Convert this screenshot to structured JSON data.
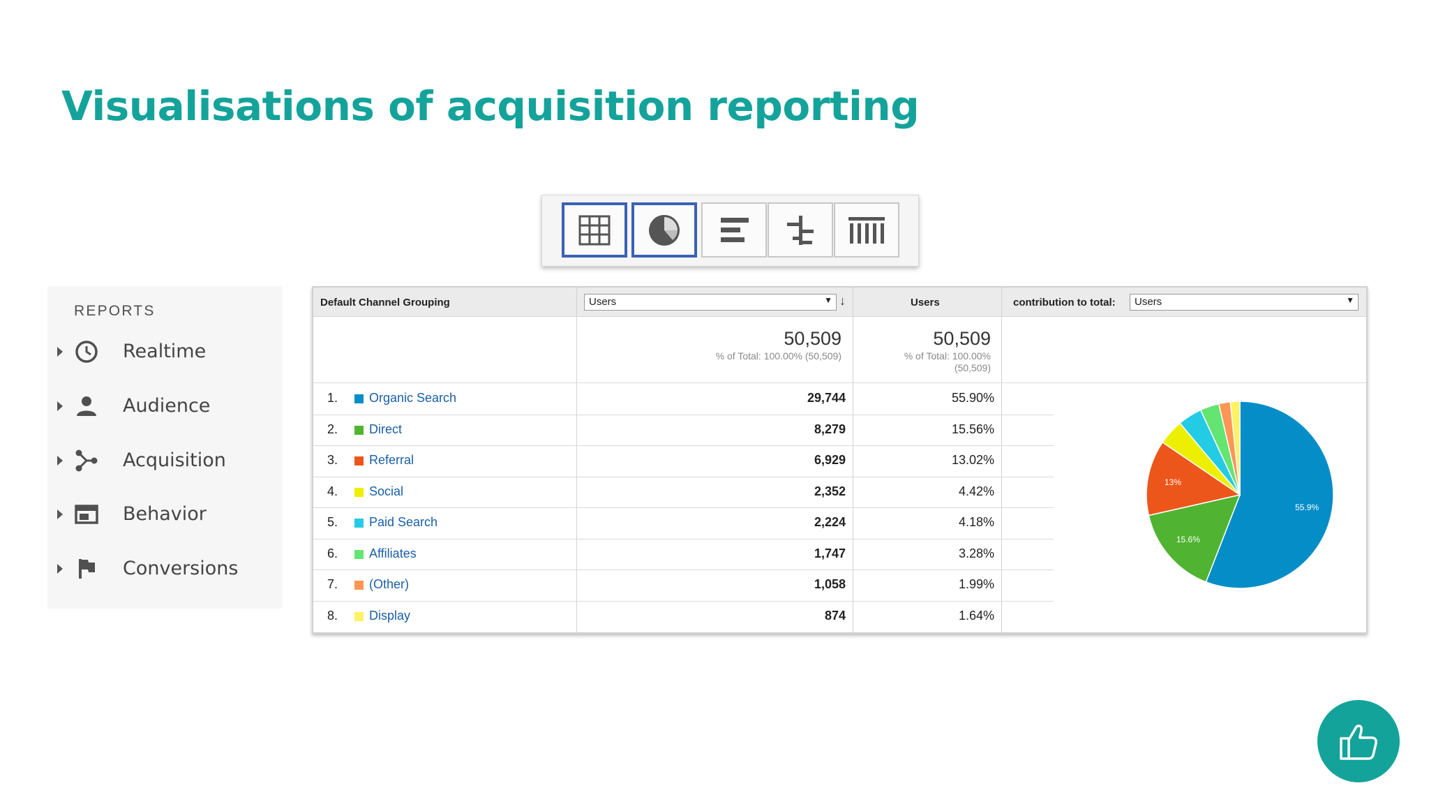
{
  "slide": {
    "title": "Visualisations of acquisition reporting"
  },
  "toolbar": {
    "buttons": [
      {
        "icon": "grid-table-icon",
        "active": true
      },
      {
        "icon": "pie-chart-icon",
        "active": true
      },
      {
        "icon": "bar-performance-icon",
        "active": false
      },
      {
        "icon": "comparison-icon",
        "active": false
      },
      {
        "icon": "pivot-icon",
        "active": false
      }
    ]
  },
  "sidebar": {
    "heading": "REPORTS",
    "items": [
      {
        "label": "Realtime",
        "icon": "clock-icon"
      },
      {
        "label": "Audience",
        "icon": "person-icon"
      },
      {
        "label": "Acquisition",
        "icon": "acquisition-icon"
      },
      {
        "label": "Behavior",
        "icon": "behavior-icon"
      },
      {
        "label": "Conversions",
        "icon": "flag-icon"
      }
    ]
  },
  "report": {
    "col_dimension": "Default Channel Grouping",
    "metric_select": "Users",
    "col_users": "Users",
    "contribution_label": "contribution to total:",
    "contribution_select": "Users",
    "total_metric": "50,509",
    "total_metric_sub": "% of Total: 100.00% (50,509)",
    "total_users": "50,509",
    "total_users_sub1": "% of Total: 100.00%",
    "total_users_sub2": "(50,509)",
    "rows": [
      {
        "num": "1.",
        "channel": "Organic Search",
        "users": "29,744",
        "pct": "55.90%",
        "color": "#058dc7"
      },
      {
        "num": "2.",
        "channel": "Direct",
        "users": "8,279",
        "pct": "15.56%",
        "color": "#50b432"
      },
      {
        "num": "3.",
        "channel": "Referral",
        "users": "6,929",
        "pct": "13.02%",
        "color": "#ed561b"
      },
      {
        "num": "4.",
        "channel": "Social",
        "users": "2,352",
        "pct": "4.42%",
        "color": "#edef00"
      },
      {
        "num": "5.",
        "channel": "Paid Search",
        "users": "2,224",
        "pct": "4.18%",
        "color": "#24cbe5"
      },
      {
        "num": "6.",
        "channel": "Affiliates",
        "users": "1,747",
        "pct": "3.28%",
        "color": "#64e572"
      },
      {
        "num": "7.",
        "channel": "(Other)",
        "users": "1,058",
        "pct": "1.99%",
        "color": "#ff9655"
      },
      {
        "num": "8.",
        "channel": "Display",
        "users": "874",
        "pct": "1.64%",
        "color": "#fff263"
      }
    ]
  },
  "chart_data": {
    "type": "pie",
    "categories": [
      "Organic Search",
      "Direct",
      "Referral",
      "Social",
      "Paid Search",
      "Affiliates",
      "(Other)",
      "Display"
    ],
    "values": [
      55.9,
      15.56,
      13.02,
      4.42,
      4.18,
      3.28,
      1.99,
      1.64
    ],
    "colors": [
      "#058dc7",
      "#50b432",
      "#ed561b",
      "#edef00",
      "#24cbe5",
      "#64e572",
      "#ff9655",
      "#fff263"
    ],
    "slice_labels": [
      "55.9%",
      "15.6%",
      "13%",
      "",
      "",
      "",
      "",
      ""
    ]
  },
  "like_button": {
    "icon": "thumbs-up-icon"
  }
}
